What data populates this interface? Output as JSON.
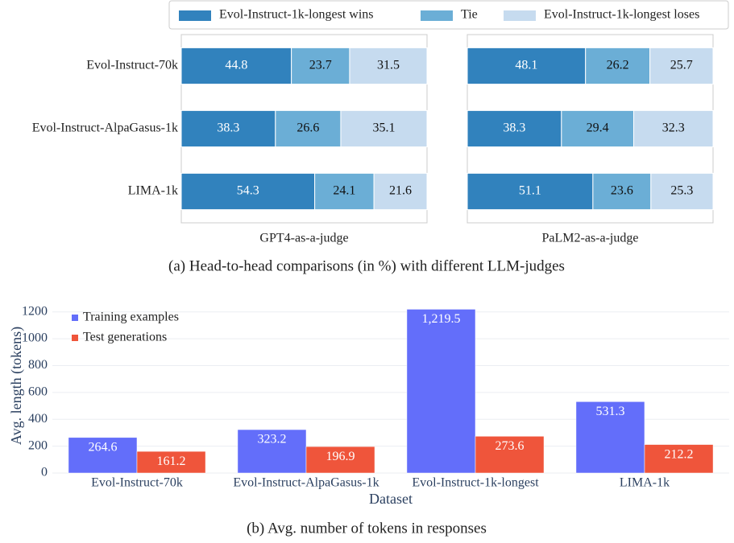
{
  "chart_data": [
    {
      "type": "stacked_barh",
      "categories": [
        "Evol-Instruct-70k",
        "Evol-Instruct-AlpaGasus-1k",
        "LIMA-1k"
      ],
      "series": [
        {
          "name": "Evol-Instruct-1k-longest wins",
          "color": "#3182bd",
          "values": [
            44.8,
            38.3,
            54.3
          ]
        },
        {
          "name": "Tie",
          "color": "#6baed6",
          "values": [
            23.7,
            26.6,
            24.1
          ]
        },
        {
          "name": "Evol-Instruct-1k-longest loses",
          "color": "#c6dbef",
          "values": [
            31.5,
            35.1,
            21.6
          ]
        }
      ],
      "xlim": [
        0,
        100
      ],
      "xlabel": "GPT4-as-a-judge",
      "caption": "(a)  Head-to-head comparisons (in %) with different LLM-judges"
    },
    {
      "type": "stacked_barh",
      "series": [
        {
          "color": "#3182bd",
          "values": [
            48.1,
            38.3,
            51.1
          ]
        },
        {
          "color": "#6baed6",
          "values": [
            26.2,
            29.4,
            23.6
          ]
        },
        {
          "color": "#c6dbef",
          "values": [
            25.7,
            32.3,
            25.3
          ]
        }
      ],
      "xlim": [
        0,
        100
      ],
      "xlabel": "PaLM2-as-a-judge"
    },
    {
      "type": "grouped_bar",
      "categories": [
        "Evol-Instruct-70k",
        "Evol-Instruct-AlpaGasus-1k",
        "Evol-Instruct-1k-longest",
        "LIMA-1k"
      ],
      "series": [
        {
          "name": "Training examples",
          "color": "#636efa",
          "values": [
            264.6,
            323.2,
            1219.5,
            531.3
          ],
          "value_labels": [
            "264.6",
            "323.2",
            "1,219.5",
            "531.3"
          ]
        },
        {
          "name": "Test generations",
          "color": "#ef553b",
          "values": [
            161.2,
            196.9,
            273.6,
            212.2
          ]
        }
      ],
      "ylim": [
        0,
        1300
      ],
      "yticks": [
        0,
        200,
        400,
        600,
        800,
        1000,
        1200
      ],
      "xlabel": "Dataset",
      "ylabel": "Avg. length (tokens)",
      "grid": true,
      "legend": "upper left",
      "caption": "(b)  Avg. number of tokens in responses"
    }
  ]
}
